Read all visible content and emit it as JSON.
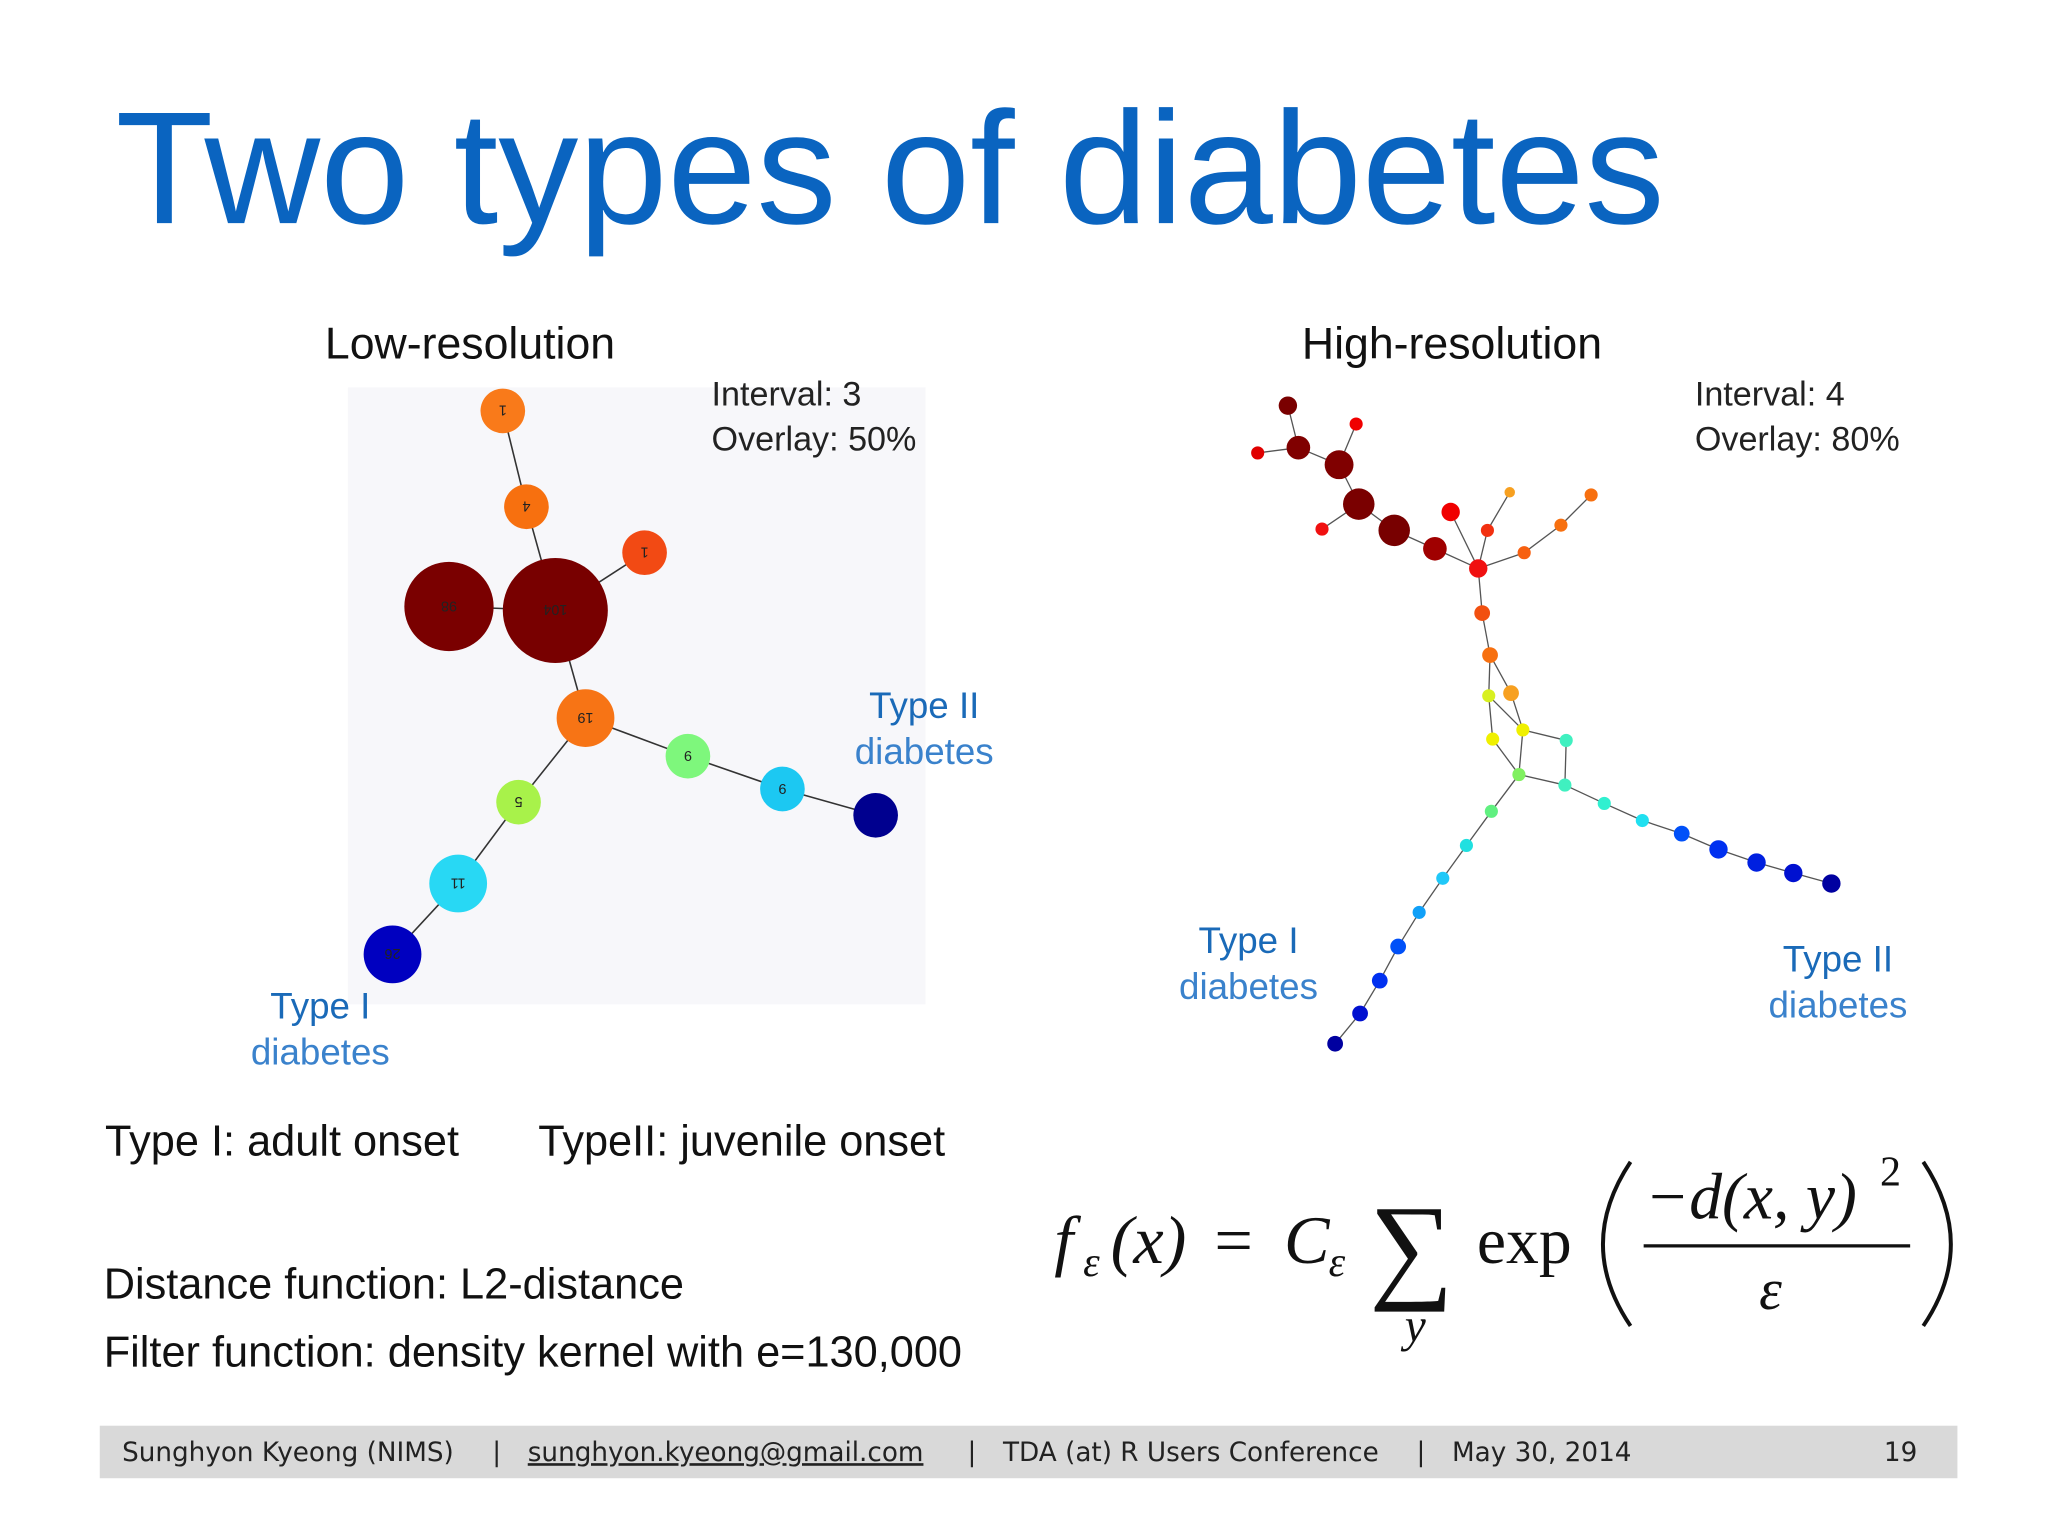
{
  "title": "Two types of diabetes",
  "panels": [
    {
      "heading": "Low-resolution",
      "params": [
        "Interval: 3",
        "Overlay: 50%"
      ],
      "annotations": [
        {
          "type": "Type II",
          "word": "diabetes"
        },
        {
          "type": "Type I",
          "word": "diabetes"
        }
      ],
      "node_labels": [
        "1",
        "4",
        "1",
        "98",
        "104",
        "19",
        "9",
        "9",
        "5",
        "11",
        "26"
      ]
    },
    {
      "heading": "High-resolution",
      "params": [
        "Interval: 4",
        "Overlay: 80%"
      ],
      "annotations": [
        {
          "type": "Type I",
          "word": "diabetes"
        },
        {
          "type": "Type II",
          "word": "diabetes"
        }
      ]
    }
  ],
  "onset": [
    {
      "term": "Type I:",
      "text": " adult onset"
    },
    {
      "term": "TypeII:",
      "text": " juvenile onset"
    }
  ],
  "functions": [
    {
      "term": "Distance function:",
      "text": " L2-distance"
    },
    {
      "term": "Filter function:",
      "text": " density kernel with e=130,000"
    }
  ],
  "formula": {
    "f": "f",
    "sub": "ε",
    "arg": "(x)",
    "eq": "=",
    "C": "C",
    "sum": "∑",
    "index": "y",
    "exp": "exp",
    "numerator": "−d(x, y)",
    "power": "2",
    "denominator": "ε"
  },
  "footer": {
    "author": "Sunghyon Kyeong (NIMS)",
    "separator": "|",
    "email": "sunghyon.kyeong@gmail.com",
    "conference": "TDA (at) R Users Conference",
    "date": "May 30, 2014",
    "page": "19"
  }
}
